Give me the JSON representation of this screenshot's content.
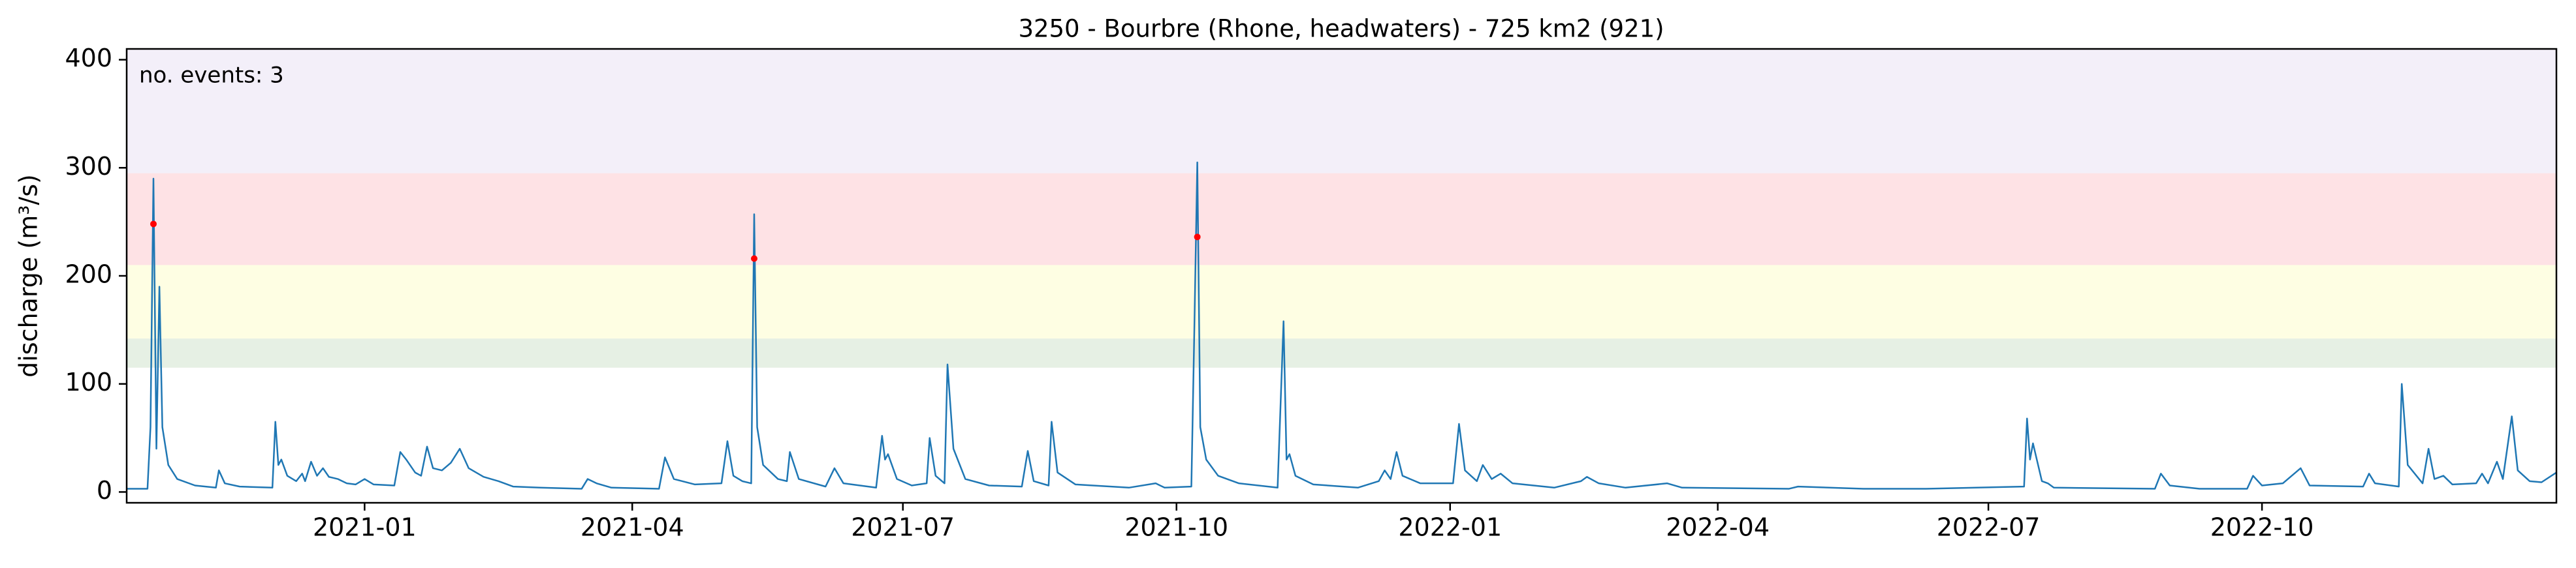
{
  "chart_data": {
    "type": "line",
    "title": "3250 - Bourbre (Rhone, headwaters) - 725 km2 (921)",
    "y_label": "discharge (m³/s)",
    "annotation": "no. events: 3",
    "annotation_color": "red",
    "xlim": [
      "2020-10-13",
      "2023-01-08"
    ],
    "ylim": [
      -10,
      410
    ],
    "yticks": [
      0,
      100,
      200,
      300,
      400
    ],
    "xticks": [
      {
        "value": "2021-01-01",
        "label": "2021-01"
      },
      {
        "value": "2021-04-01",
        "label": "2021-04"
      },
      {
        "value": "2021-07-01",
        "label": "2021-07"
      },
      {
        "value": "2021-10-01",
        "label": "2021-10"
      },
      {
        "value": "2022-01-01",
        "label": "2022-01"
      },
      {
        "value": "2022-04-01",
        "label": "2022-04"
      },
      {
        "value": "2022-07-01",
        "label": "2022-07"
      },
      {
        "value": "2022-10-01",
        "label": "2022-10"
      }
    ],
    "bands": [
      {
        "range": [
          115,
          142
        ],
        "color": "#e6f0e4"
      },
      {
        "range": [
          142,
          210
        ],
        "color": "#fefee3"
      },
      {
        "range": [
          210,
          295
        ],
        "color": "#fee2e5"
      },
      {
        "range": [
          295,
          410
        ],
        "color": "#f3eff9"
      }
    ],
    "series": [
      {
        "color": "#1f77b4",
        "x": [
          "2020-10-13",
          "2020-10-20",
          "2020-10-21",
          "2020-10-22",
          "2020-10-23",
          "2020-10-24",
          "2020-10-25",
          "2020-10-27",
          "2020-10-30",
          "2020-11-05",
          "2020-11-12",
          "2020-11-13",
          "2020-11-15",
          "2020-11-20",
          "2020-12-01",
          "2020-12-02",
          "2020-12-03",
          "2020-12-04",
          "2020-12-06",
          "2020-12-09",
          "2020-12-11",
          "2020-12-12",
          "2020-12-14",
          "2020-12-16",
          "2020-12-18",
          "2020-12-20",
          "2020-12-23",
          "2020-12-26",
          "2020-12-29",
          "2021-01-01",
          "2021-01-04",
          "2021-01-11",
          "2021-01-13",
          "2021-01-15",
          "2021-01-18",
          "2021-01-20",
          "2021-01-22",
          "2021-01-24",
          "2021-01-27",
          "2021-01-30",
          "2021-02-02",
          "2021-02-05",
          "2021-02-10",
          "2021-02-15",
          "2021-02-20",
          "2021-03-01",
          "2021-03-15",
          "2021-03-17",
          "2021-03-20",
          "2021-03-25",
          "2021-04-10",
          "2021-04-12",
          "2021-04-15",
          "2021-04-22",
          "2021-05-01",
          "2021-05-03",
          "2021-05-05",
          "2021-05-08",
          "2021-05-11",
          "2021-05-12",
          "2021-05-13",
          "2021-05-15",
          "2021-05-20",
          "2021-05-23",
          "2021-05-24",
          "2021-05-27",
          "2021-06-05",
          "2021-06-08",
          "2021-06-11",
          "2021-06-22",
          "2021-06-24",
          "2021-06-25",
          "2021-06-26",
          "2021-06-29",
          "2021-07-04",
          "2021-07-09",
          "2021-07-10",
          "2021-07-12",
          "2021-07-15",
          "2021-07-16",
          "2021-07-18",
          "2021-07-22",
          "2021-07-30",
          "2021-08-10",
          "2021-08-12",
          "2021-08-14",
          "2021-08-19",
          "2021-08-20",
          "2021-08-22",
          "2021-08-28",
          "2021-09-15",
          "2021-09-24",
          "2021-09-27",
          "2021-10-06",
          "2021-10-07",
          "2021-10-08",
          "2021-10-09",
          "2021-10-11",
          "2021-10-15",
          "2021-10-22",
          "2021-11-04",
          "2021-11-06",
          "2021-11-07",
          "2021-11-08",
          "2021-11-10",
          "2021-11-16",
          "2021-12-01",
          "2021-12-08",
          "2021-12-10",
          "2021-12-12",
          "2021-12-14",
          "2021-12-16",
          "2021-12-22",
          "2022-01-02",
          "2022-01-04",
          "2022-01-06",
          "2022-01-10",
          "2022-01-12",
          "2022-01-15",
          "2022-01-18",
          "2022-01-22",
          "2022-02-05",
          "2022-02-14",
          "2022-02-16",
          "2022-02-20",
          "2022-03-01",
          "2022-03-15",
          "2022-03-20",
          "2022-04-25",
          "2022-04-28",
          "2022-05-20",
          "2022-06-10",
          "2022-07-13",
          "2022-07-14",
          "2022-07-15",
          "2022-07-16",
          "2022-07-19",
          "2022-07-21",
          "2022-07-23",
          "2022-08-26",
          "2022-08-28",
          "2022-08-31",
          "2022-09-10",
          "2022-09-26",
          "2022-09-28",
          "2022-10-01",
          "2022-10-08",
          "2022-10-14",
          "2022-10-17",
          "2022-11-04",
          "2022-11-06",
          "2022-11-08",
          "2022-11-16",
          "2022-11-17",
          "2022-11-19",
          "2022-11-24",
          "2022-11-26",
          "2022-11-28",
          "2022-12-01",
          "2022-12-04",
          "2022-12-12",
          "2022-12-14",
          "2022-12-16",
          "2022-12-19",
          "2022-12-21",
          "2022-12-24",
          "2022-12-26",
          "2022-12-30",
          "2023-01-03",
          "2023-01-08"
        ],
        "values": [
          3,
          3,
          60,
          290,
          40,
          190,
          60,
          25,
          12,
          6,
          4,
          20,
          8,
          5,
          4,
          65,
          25,
          30,
          15,
          10,
          17,
          10,
          28,
          15,
          22,
          14,
          12,
          8,
          7,
          12,
          7,
          6,
          37,
          30,
          18,
          15,
          42,
          22,
          20,
          27,
          40,
          22,
          14,
          10,
          5,
          4,
          3,
          12,
          8,
          4,
          3,
          32,
          12,
          7,
          8,
          47,
          15,
          10,
          8,
          257,
          60,
          25,
          12,
          10,
          37,
          12,
          5,
          22,
          8,
          4,
          52,
          30,
          35,
          12,
          6,
          8,
          50,
          15,
          8,
          118,
          40,
          12,
          6,
          5,
          38,
          10,
          6,
          65,
          18,
          7,
          4,
          8,
          4,
          5,
          150,
          305,
          60,
          30,
          15,
          8,
          4,
          158,
          30,
          35,
          15,
          7,
          4,
          10,
          20,
          12,
          37,
          15,
          8,
          8,
          63,
          20,
          10,
          25,
          12,
          17,
          8,
          4,
          10,
          14,
          8,
          4,
          8,
          4,
          3,
          5,
          3,
          3,
          5,
          68,
          30,
          45,
          10,
          8,
          4,
          3,
          17,
          6,
          3,
          3,
          15,
          6,
          8,
          22,
          6,
          5,
          17,
          8,
          5,
          100,
          25,
          8,
          40,
          12,
          15,
          7,
          8,
          17,
          8,
          28,
          12,
          70,
          20,
          10,
          9,
          18
        ]
      }
    ],
    "events": {
      "color": "red",
      "x": [
        "2020-10-22",
        "2021-05-12",
        "2021-10-08"
      ],
      "values": [
        248,
        216,
        236
      ]
    }
  }
}
